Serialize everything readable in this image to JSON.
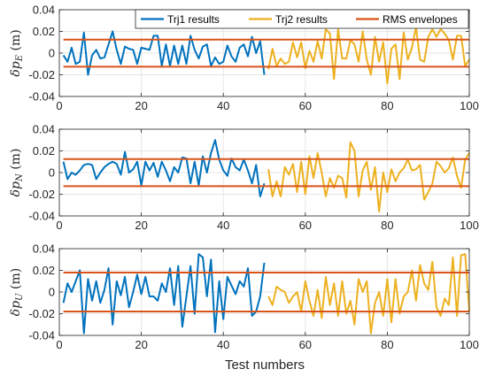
{
  "chart_data": {
    "type": "line",
    "xlabel": "Test numbers",
    "xlim": [
      0,
      100
    ],
    "xticks": [
      0,
      20,
      40,
      60,
      80,
      100
    ],
    "grid": true,
    "legend": {
      "placement": "top-right",
      "entries": [
        {
          "label": "Trj1 results",
          "color": "#0072BD"
        },
        {
          "label": "Trj2 results",
          "color": "#EDB120"
        },
        {
          "label": "RMS envelopes",
          "color": "#D95319"
        }
      ]
    },
    "panels": [
      {
        "ylabel_main": "δp",
        "ylabel_sub": "E",
        "ylabel_unit": "(m)",
        "ylim": [
          -0.04,
          0.04
        ],
        "yticks": [
          0.04,
          0.02,
          0,
          -0.02,
          -0.04
        ],
        "ytick_labels": [
          "0.04",
          "0.02",
          "0",
          "-0.02",
          "-0.04"
        ],
        "rms": 0.0125,
        "series": [
          {
            "name": "Trj1 results",
            "x_start": 1,
            "values": [
              -0.002,
              -0.008,
              0.005,
              -0.01,
              -0.008,
              0.019,
              -0.02,
              -0.002,
              0.003,
              -0.005,
              -0.004,
              0.008,
              0.02,
              0.003,
              -0.01,
              0.006,
              0.004,
              0.003,
              -0.01,
              0.005,
              0.004,
              0.003,
              0.016,
              0.016,
              -0.012,
              0.008,
              -0.012,
              0.007,
              -0.01,
              0.007,
              -0.01,
              0.016,
              0.003,
              -0.005,
              0.006,
              0.008,
              -0.012,
              -0.004,
              -0.01,
              -0.008,
              0.007,
              -0.003,
              -0.008,
              0.005,
              0.008,
              -0.003,
              0.015,
              0.0,
              0.011,
              -0.02
            ]
          },
          {
            "name": "Trj2 results",
            "x_start": 51,
            "values": [
              -0.015,
              0.004,
              -0.012,
              -0.005,
              -0.01,
              -0.008,
              0.01,
              -0.004,
              0.01,
              -0.014,
              0.002,
              -0.008,
              0.011,
              -0.005,
              0.022,
              0.018,
              -0.024,
              0.022,
              -0.005,
              -0.005,
              0.012,
              0.008,
              -0.008,
              0.02,
              -0.006,
              -0.02,
              0.015,
              -0.008,
              0.01,
              -0.028,
              0.004,
              0.008,
              -0.024,
              0.019,
              -0.006,
              0.005,
              0.024,
              -0.006,
              -0.008,
              0.015,
              0.022,
              0.015,
              0.022,
              0.018,
              0.012,
              -0.006,
              0.016,
              0.016,
              -0.012,
              -0.006
            ]
          }
        ]
      },
      {
        "ylabel_main": "δp",
        "ylabel_sub": "N",
        "ylabel_unit": "(m)",
        "ylim": [
          -0.04,
          0.04
        ],
        "yticks": [
          0.04,
          0.02,
          0,
          -0.02,
          -0.04
        ],
        "ytick_labels": [
          "0.04",
          "0.02",
          "0",
          "-0.02",
          "-0.04"
        ],
        "rms": 0.0125,
        "series": [
          {
            "name": "Trj1 results",
            "x_start": 1,
            "values": [
              0.01,
              -0.006,
              0.0,
              -0.002,
              0.002,
              0.007,
              0.008,
              0.007,
              -0.006,
              0.0,
              0.005,
              0.008,
              0.01,
              0.008,
              -0.002,
              0.019,
              0.0,
              0.003,
              0.01,
              -0.012,
              0.01,
              0.002,
              0.009,
              -0.004,
              0.01,
              0.002,
              -0.008,
              0.005,
              0.0,
              0.014,
              0.013,
              -0.01,
              0.01,
              -0.012,
              0.015,
              0.0,
              0.018,
              0.03,
              0.012,
              0.002,
              -0.003,
              0.013,
              0.005,
              0.002,
              0.012,
              0.002,
              -0.01,
              0.007,
              -0.022,
              -0.01
            ]
          },
          {
            "name": "Trj2 results",
            "x_start": 51,
            "values": [
              0.003,
              -0.022,
              -0.008,
              -0.022,
              0.005,
              -0.002,
              0.008,
              -0.018,
              0.01,
              -0.02,
              0.015,
              -0.005,
              0.018,
              0.0,
              -0.022,
              -0.005,
              -0.014,
              -0.003,
              -0.005,
              -0.023,
              0.028,
              0.02,
              -0.022,
              0.002,
              0.01,
              -0.016,
              0.005,
              -0.036,
              0.0,
              -0.018,
              0.003,
              -0.008,
              0.0,
              0.004,
              0.012,
              0.002,
              0.003,
              0.007,
              -0.025,
              -0.018,
              -0.01,
              0.01,
              0.006,
              0.0,
              0.004,
              0.014,
              -0.003,
              -0.014,
              0.012,
              0.018
            ]
          }
        ]
      },
      {
        "ylabel_main": "δp",
        "ylabel_sub": "U",
        "ylabel_unit": "(m)",
        "ylim": [
          -0.04,
          0.04
        ],
        "yticks": [
          0.04,
          0.02,
          0,
          -0.02,
          -0.04
        ],
        "ytick_labels": [
          "0.04",
          "0.02",
          "0",
          "-0.02",
          "-0.04"
        ],
        "rms": 0.018,
        "series": [
          {
            "name": "Trj1 results",
            "x_start": 1,
            "values": [
              -0.01,
              0.008,
              0.0,
              0.01,
              0.02,
              -0.038,
              0.012,
              -0.008,
              0.01,
              -0.01,
              0.002,
              0.022,
              -0.03,
              0.01,
              -0.003,
              0.014,
              -0.014,
              0.0,
              0.016,
              -0.002,
              0.014,
              -0.004,
              -0.004,
              -0.008,
              0.008,
              0.0,
              0.022,
              -0.012,
              0.024,
              -0.032,
              -0.004,
              0.024,
              -0.02,
              0.035,
              0.032,
              -0.004,
              0.03,
              -0.037,
              0.01,
              -0.025,
              0.014,
              0.006,
              -0.002,
              0.01,
              0.005,
              0.022,
              -0.022,
              -0.018,
              -0.004,
              0.027
            ]
          },
          {
            "name": "Trj2 results",
            "x_start": 51,
            "values": [
              -0.004,
              -0.012,
              0.005,
              0.002,
              0.0,
              -0.01,
              -0.004,
              0.0,
              -0.018,
              0.01,
              -0.008,
              -0.022,
              0.002,
              -0.024,
              0.014,
              -0.012,
              0.008,
              -0.022,
              0.01,
              -0.02,
              -0.008,
              -0.03,
              0.012,
              0.0,
              0.01,
              -0.038,
              -0.01,
              0.0,
              -0.022,
              0.012,
              -0.028,
              0.012,
              -0.02,
              -0.004,
              0.0,
              0.02,
              -0.008,
              0.025,
              0.008,
              0.002,
              0.028,
              -0.014,
              -0.022,
              -0.006,
              -0.012,
              0.032,
              -0.022,
              0.034,
              0.035,
              -0.018
            ]
          }
        ]
      }
    ]
  }
}
